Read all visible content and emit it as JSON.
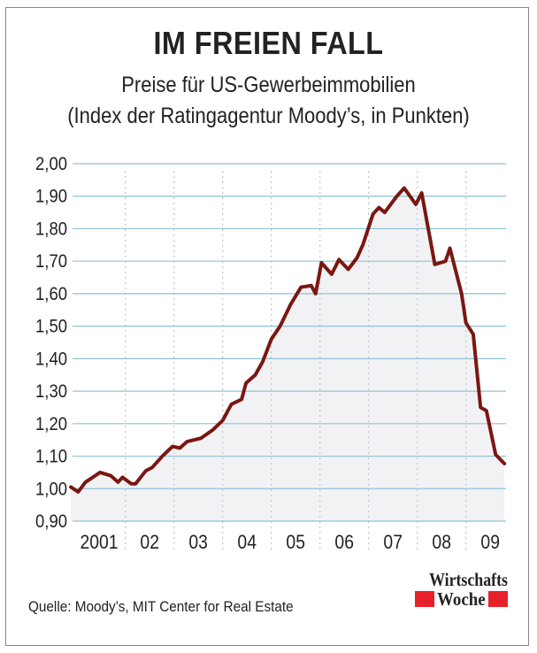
{
  "title": "IM FREIEN FALL",
  "subtitle": "Preise für US-Gewerbeimmobilien",
  "subtitle2": "(Index der Ratingagentur Moody’s, in Punkten)",
  "source": "Quelle: Moody’s, MIT Center for Real Estate",
  "logo": {
    "line1": "Wirtschafts",
    "line2": "Woche",
    "accent": "#e8202a"
  },
  "chart_data": {
    "type": "area",
    "title": "IM FREIEN FALL",
    "ylim": [
      0.9,
      2.0
    ],
    "xlim": [
      2001,
      2010
    ],
    "yticks": [
      "2,00",
      "1,90",
      "1,80",
      "1,70",
      "1,60",
      "1,50",
      "1,40",
      "1,30",
      "1,20",
      "1,10",
      "1,00",
      "0,90"
    ],
    "ytick_values": [
      2.0,
      1.9,
      1.8,
      1.7,
      1.6,
      1.5,
      1.4,
      1.3,
      1.2,
      1.1,
      1.0,
      0.9
    ],
    "xticks": [
      "2001",
      "02",
      "03",
      "04",
      "05",
      "06",
      "07",
      "08",
      "09"
    ],
    "grid": true,
    "colors": {
      "line": "#7a1712",
      "fill": "#f2f2f4",
      "hgrid": "#8cc4d8",
      "vgrid": "#b8c8d4"
    },
    "x": [
      2000.88,
      2001.03,
      2001.18,
      2001.48,
      2001.7,
      2001.85,
      2001.94,
      2002.12,
      2002.21,
      2002.42,
      2002.55,
      2002.76,
      2002.97,
      2003.12,
      2003.27,
      2003.55,
      2003.79,
      2004.0,
      2004.18,
      2004.39,
      2004.48,
      2004.67,
      2004.82,
      2005.0,
      2005.18,
      2005.39,
      2005.61,
      2005.82,
      2005.91,
      2006.03,
      2006.24,
      2006.39,
      2006.58,
      2006.76,
      2006.88,
      2007.09,
      2007.21,
      2007.33,
      2007.58,
      2007.73,
      2007.97,
      2008.09,
      2008.36,
      2008.58,
      2008.67,
      2008.91,
      2009.0,
      2009.15,
      2009.3,
      2009.42,
      2009.61,
      2009.79
    ],
    "values": [
      1.005,
      0.99,
      1.02,
      1.05,
      1.04,
      1.02,
      1.035,
      1.015,
      1.015,
      1.055,
      1.065,
      1.1,
      1.13,
      1.125,
      1.145,
      1.155,
      1.18,
      1.21,
      1.26,
      1.275,
      1.325,
      1.35,
      1.39,
      1.46,
      1.5,
      1.565,
      1.62,
      1.625,
      1.6,
      1.695,
      1.66,
      1.705,
      1.675,
      1.71,
      1.75,
      1.845,
      1.865,
      1.85,
      1.9,
      1.925,
      1.875,
      1.91,
      1.69,
      1.7,
      1.74,
      1.6,
      1.51,
      1.475,
      1.25,
      1.24,
      1.105,
      1.077
    ]
  }
}
